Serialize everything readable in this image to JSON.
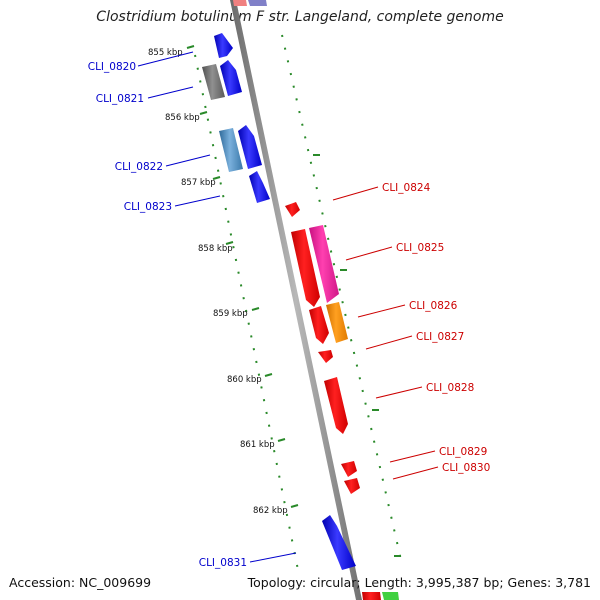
{
  "title": "Clostridium botulinum F str. Langeland, complete genome",
  "footer": {
    "accession": "Accession: NC_009699",
    "summary": "Topology: circular; Length: 3,995,387 bp; Genes: 3,781"
  },
  "scale_ticks": [
    "855 kbp",
    "856 kbp",
    "857 kbp",
    "858 kbp",
    "859 kbp",
    "860 kbp",
    "861 kbp",
    "862 kbp"
  ],
  "left_genes": [
    "CLI_0820",
    "CLI_0821",
    "CLI_0822",
    "CLI_0823",
    "CLI_0831"
  ],
  "right_genes": [
    "CLI_0824",
    "CLI_0825",
    "CLI_0826",
    "CLI_0827",
    "CLI_0828",
    "CLI_0829",
    "CLI_0830"
  ],
  "colors": {
    "forward_label": "#0000cc",
    "reverse_label": "#cc0000",
    "backbone": "#8a8a8a",
    "ruler": "#2a8a2a",
    "gene_blue": "#1010ee",
    "gene_red": "#ee1010",
    "gene_pink": "#f0209a",
    "gene_orange": "#f08a10",
    "gene_gray": "#707070",
    "gene_steel": "#4a86b8"
  }
}
